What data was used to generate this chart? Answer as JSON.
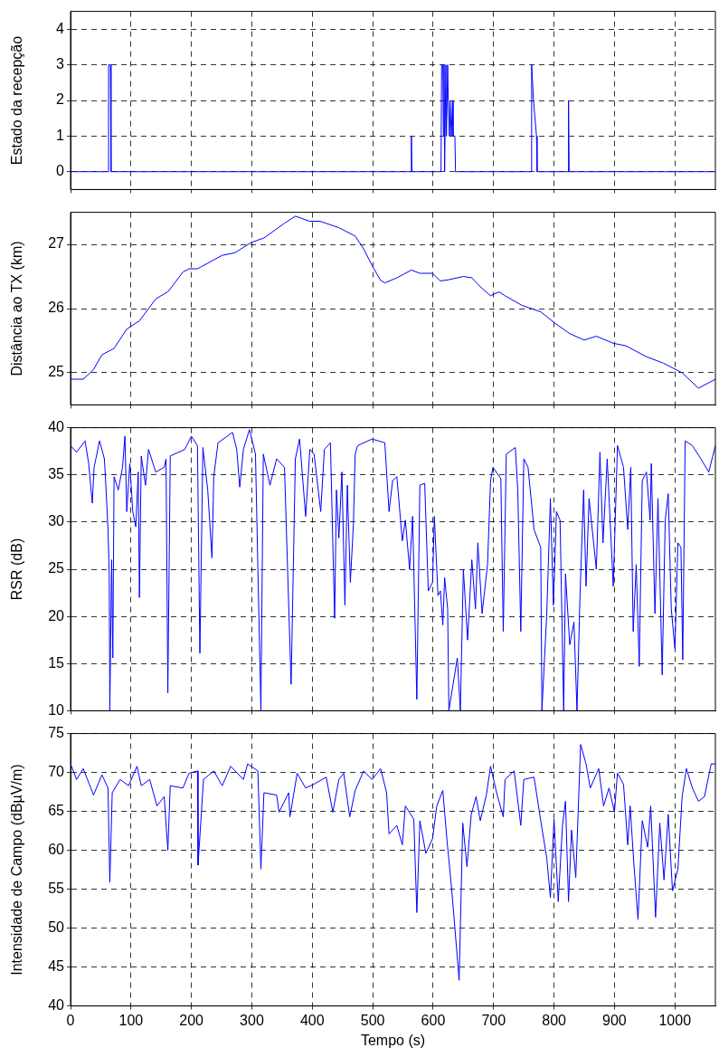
{
  "chart_data": [
    {
      "type": "line",
      "ylabel": "Estado da recepção",
      "xlim": [
        0,
        1067
      ],
      "xticks": [
        0,
        100,
        200,
        300,
        400,
        500,
        600,
        700,
        800,
        900,
        1000
      ],
      "ylim": [
        -0.5,
        4.5
      ],
      "yticks": [
        0,
        1,
        2,
        3,
        4
      ],
      "grid": true,
      "tick_labels": "y",
      "marker": "none",
      "line_style": "solid",
      "series": [
        {
          "color": "#0000ff",
          "x": [
            0,
            63,
            63,
            66,
            67,
            564,
            564,
            565,
            613,
            614,
            616,
            617,
            618,
            619,
            621,
            622,
            624,
            625,
            627,
            628,
            630,
            632,
            633,
            636,
            637,
            763,
            763,
            766,
            771,
            772,
            824,
            824,
            825,
            1067
          ],
          "values": [
            0,
            0,
            3,
            3,
            0,
            0,
            1,
            0,
            0,
            3,
            3,
            1,
            3,
            0,
            3,
            1,
            3,
            2,
            1,
            2,
            1,
            2,
            1,
            1,
            0,
            0,
            3,
            2,
            1,
            0,
            0,
            2,
            0,
            0
          ]
        }
      ]
    },
    {
      "type": "line",
      "ylabel": "Distância ao TX (km)",
      "xlim": [
        0,
        1067
      ],
      "xticks": [
        0,
        100,
        200,
        300,
        400,
        500,
        600,
        700,
        800,
        900,
        1000
      ],
      "ylim": [
        24.5,
        27.5
      ],
      "yticks": [
        25,
        26,
        27
      ],
      "grid": true,
      "tick_labels": "y",
      "marker": "none",
      "line_style": "solid",
      "series": [
        {
          "color": "#0000ff",
          "x": [
            0,
            21,
            38,
            52,
            72,
            93,
            114,
            141,
            162,
            186,
            196,
            210,
            251,
            272,
            299,
            320,
            354,
            372,
            396,
            413,
            444,
            471,
            485,
            499,
            513,
            520,
            540,
            564,
            578,
            599,
            612,
            626,
            650,
            664,
            678,
            695,
            709,
            719,
            747,
            778,
            802,
            826,
            850,
            870,
            898,
            919,
            953,
            981,
            1012,
            1039,
            1067
          ],
          "values": [
            24.9,
            24.9,
            25.05,
            25.28,
            25.38,
            25.68,
            25.81,
            26.15,
            26.27,
            26.57,
            26.62,
            26.62,
            26.83,
            26.87,
            27.03,
            27.1,
            27.33,
            27.44,
            27.36,
            27.36,
            27.26,
            27.13,
            26.93,
            26.67,
            26.44,
            26.4,
            26.48,
            26.6,
            26.55,
            26.55,
            26.43,
            26.45,
            26.5,
            26.48,
            26.34,
            26.2,
            26.26,
            26.2,
            26.05,
            25.95,
            25.77,
            25.61,
            25.51,
            25.57,
            25.46,
            25.42,
            25.25,
            25.15,
            25.0,
            24.76,
            24.9
          ]
        }
      ]
    },
    {
      "type": "line",
      "ylabel": "RSR (dB)",
      "xlim": [
        0,
        1067
      ],
      "xticks": [
        0,
        100,
        200,
        300,
        400,
        500,
        600,
        700,
        800,
        900,
        1000
      ],
      "ylim": [
        10,
        40
      ],
      "yticks": [
        10,
        15,
        20,
        25,
        30,
        35,
        40
      ],
      "grid": true,
      "tick_labels": "y",
      "marker": "none",
      "line_style": "solid",
      "series": [
        {
          "color": "#0000ff",
          "x": [
            0,
            10,
            24,
            30,
            36,
            39,
            48,
            56,
            58,
            62,
            64,
            65,
            68,
            70,
            72,
            79,
            86,
            90,
            93,
            98,
            103,
            108,
            112,
            114,
            117,
            124,
            129,
            141,
            155,
            158,
            161,
            165,
            189,
            200,
            210,
            214,
            219,
            227,
            234,
            237,
            244,
            268,
            275,
            280,
            286,
            296,
            306,
            315,
            319,
            330,
            341,
            354,
            365,
            372,
            379,
            389,
            396,
            403,
            414,
            420,
            430,
            437,
            440,
            444,
            449,
            454,
            458,
            463,
            468,
            471,
            475,
            499,
            520,
            527,
            533,
            540,
            549,
            554,
            561,
            566,
            573,
            578,
            586,
            592,
            599,
            602,
            608,
            612,
            616,
            619,
            624,
            626,
            640,
            645,
            650,
            657,
            664,
            670,
            674,
            681,
            690,
            695,
            699,
            712,
            716,
            721,
            736,
            740,
            745,
            750,
            757,
            767,
            778,
            780,
            788,
            794,
            799,
            804,
            810,
            816,
            819,
            826,
            833,
            838,
            843,
            849,
            853,
            858,
            870,
            876,
            881,
            888,
            898,
            905,
            915,
            922,
            927,
            931,
            936,
            941,
            946,
            953,
            959,
            961,
            967,
            972,
            979,
            984,
            989,
            994,
            1000,
            1005,
            1010,
            1013,
            1017,
            1029,
            1043,
            1056,
            1067
          ],
          "values": [
            38.1,
            37.4,
            38.6,
            36.2,
            32,
            35.8,
            38.6,
            36.7,
            34.4,
            29.2,
            24.5,
            10,
            26,
            15.6,
            34.8,
            33.4,
            35.8,
            39.1,
            31.1,
            36.2,
            31.1,
            29.5,
            35.3,
            22,
            37,
            33.9,
            37.7,
            35.3,
            35.8,
            36.7,
            11.9,
            37,
            37.7,
            39.1,
            38.1,
            16.1,
            37.9,
            33.4,
            26.2,
            34.8,
            38.4,
            39.5,
            37.7,
            33.7,
            37.7,
            39.8,
            37.2,
            10,
            37.2,
            33.9,
            36.7,
            35.8,
            12.8,
            36.7,
            38.8,
            30.6,
            37.7,
            37.2,
            31.1,
            37.7,
            38.4,
            19.8,
            33.4,
            28.3,
            35.3,
            21.2,
            33.9,
            23.6,
            29.7,
            37.2,
            38.1,
            38.8,
            38.4,
            31.1,
            34.4,
            34.8,
            28,
            30.2,
            25,
            30.6,
            11.2,
            33.9,
            34.1,
            22.7,
            23.6,
            30.6,
            22.2,
            22.7,
            19.1,
            24.1,
            20.8,
            10,
            15.6,
            10,
            25,
            17.5,
            26,
            20.8,
            27.8,
            20.3,
            25.5,
            34.4,
            35.8,
            34.6,
            18.4,
            37.2,
            37.9,
            33.4,
            18.4,
            36.7,
            35.8,
            29.2,
            27.3,
            10,
            20.3,
            32.5,
            21.2,
            31.1,
            30.2,
            10,
            24.5,
            17,
            19.4,
            10,
            22.2,
            33.4,
            23.2,
            32.5,
            25,
            37.4,
            27.8,
            36.7,
            23.2,
            38.1,
            35.8,
            29.2,
            35.8,
            18.4,
            25.5,
            14.7,
            34.4,
            35.3,
            30.2,
            36.2,
            20.3,
            32.5,
            13.8,
            30.2,
            33,
            20.8,
            16.6,
            27.8,
            27.3,
            15.4,
            38.6,
            38.1,
            36.7,
            35.3,
            38.1
          ]
        }
      ]
    },
    {
      "type": "line",
      "xlabel": "Tempo (s)",
      "ylabel": "Intensidade de Campo (dBµV/m)",
      "xlim": [
        0,
        1067
      ],
      "xticks": [
        0,
        100,
        200,
        300,
        400,
        500,
        600,
        700,
        800,
        900,
        1000
      ],
      "ylim": [
        40,
        75
      ],
      "yticks": [
        40,
        45,
        50,
        55,
        60,
        65,
        70,
        75
      ],
      "grid": true,
      "marker": "none",
      "line_style": "solid",
      "series": [
        {
          "color": "#0000ff",
          "x": [
            0,
            10,
            21,
            31,
            38,
            52,
            62,
            65,
            69,
            82,
            96,
            110,
            117,
            131,
            143,
            155,
            161,
            165,
            186,
            196,
            210,
            211,
            220,
            237,
            251,
            265,
            286,
            293,
            310,
            315,
            320,
            341,
            345,
            361,
            363,
            375,
            389,
            403,
            423,
            434,
            444,
            452,
            462,
            471,
            485,
            499,
            513,
            523,
            527,
            540,
            549,
            554,
            568,
            573,
            578,
            588,
            599,
            606,
            616,
            623,
            630,
            636,
            643,
            649,
            656,
            663,
            671,
            678,
            688,
            695,
            705,
            716,
            719,
            734,
            745,
            750,
            767,
            778,
            788,
            794,
            800,
            807,
            814,
            819,
            824,
            829,
            836,
            844,
            853,
            860,
            874,
            882,
            891,
            900,
            905,
            915,
            922,
            926,
            932,
            939,
            946,
            955,
            960,
            968,
            975,
            982,
            989,
            996,
            1005,
            1012,
            1019,
            1029,
            1039,
            1049,
            1060,
            1067
          ],
          "values": [
            71.1,
            69.1,
            70.5,
            68.5,
            67.1,
            69.7,
            68,
            55.9,
            67.4,
            69.1,
            68.3,
            70.8,
            68.3,
            69.1,
            65.7,
            66.9,
            60,
            68.3,
            68,
            69.9,
            70.2,
            58.1,
            69.1,
            70.2,
            68.3,
            70.8,
            69.1,
            71.1,
            70.2,
            57.6,
            67.4,
            67.1,
            64.9,
            67.4,
            64.3,
            69.9,
            68,
            68.5,
            69.4,
            64.9,
            69.1,
            69.9,
            64.3,
            67.7,
            70.2,
            69.1,
            70.5,
            67.4,
            62.1,
            63.2,
            60.7,
            65.7,
            64,
            52,
            63.8,
            59.6,
            61.5,
            65.7,
            67.7,
            61.2,
            55.6,
            50,
            43.3,
            63.5,
            57.9,
            64.6,
            66.9,
            63.8,
            67.1,
            70.8,
            67.4,
            64.3,
            69.1,
            70.2,
            63.2,
            69.1,
            69.4,
            63.8,
            59,
            53.9,
            64,
            53.4,
            63.2,
            66.3,
            53.4,
            62.6,
            56.5,
            73.6,
            71.1,
            68,
            70.5,
            65.7,
            68,
            64.9,
            69.9,
            68.5,
            60.7,
            65.7,
            58.4,
            51.1,
            63.8,
            60.4,
            65.7,
            51.4,
            63.5,
            56.2,
            64.6,
            54.8,
            57.6,
            66.9,
            70.5,
            68,
            66.3,
            66.9,
            71.1,
            71.1
          ]
        }
      ]
    }
  ]
}
